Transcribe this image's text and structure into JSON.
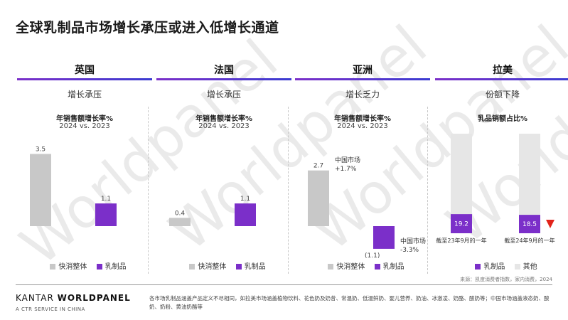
{
  "title": "全球乳制品市场增长承压或进入低增长通道",
  "colors": {
    "overall": "#c8c8c8",
    "dairy": "#7b2fc9",
    "other": "#e6e6e6",
    "down": "#e2231a"
  },
  "panels": [
    {
      "name": "英国",
      "subtitle": "增长承压",
      "chart_title": "年销售额增长率%",
      "chart_subtitle": "2024 vs. 2023"
    },
    {
      "name": "法国",
      "subtitle": "增长承压",
      "chart_title": "年销售额增长率%",
      "chart_subtitle": "2024 vs. 2023"
    },
    {
      "name": "亚洲",
      "subtitle": "增长乏力",
      "chart_title": "年销售额增长率%",
      "chart_subtitle": "2024 vs. 2023"
    },
    {
      "name": "拉美",
      "subtitle": "份额下降",
      "chart_title": "乳品销额占比%",
      "chart_subtitle": ""
    }
  ],
  "asia_annotations": {
    "overall": "中国市场\n+1.7%",
    "dairy": "中国市场\n-3.3%"
  },
  "legend": {
    "overall": "快消整体",
    "dairy": "乳制品",
    "other": "其他"
  },
  "chart_data": [
    {
      "type": "bar",
      "title": "年销售额增长率%",
      "xlabel": "2024 vs. 2023",
      "categories": [
        "快消整体",
        "乳制品"
      ],
      "values": [
        3.5,
        1.1
      ],
      "labels": [
        "3.5",
        "1.1"
      ],
      "ylim": [
        -1.5,
        3.5
      ]
    },
    {
      "type": "bar",
      "title": "年销售额增长率%",
      "xlabel": "2024 vs. 2023",
      "categories": [
        "快消整体",
        "乳制品"
      ],
      "values": [
        0.4,
        1.1
      ],
      "labels": [
        "0.4",
        "1.1"
      ],
      "ylim": [
        -1.5,
        3.5
      ]
    },
    {
      "type": "bar",
      "title": "年销售额增长率%",
      "xlabel": "2024 vs. 2023",
      "categories": [
        "快消整体",
        "乳制品"
      ],
      "values": [
        2.7,
        -1.1
      ],
      "labels": [
        "2.7",
        "(1.1)"
      ],
      "ylim": [
        -1.5,
        3.5
      ]
    },
    {
      "type": "bar",
      "title": "乳品销额占比%",
      "stacked": true,
      "categories": [
        "截至23年9月的一年",
        "截至24年9月的一年"
      ],
      "series": [
        {
          "name": "乳制品",
          "values": [
            19.2,
            18.5
          ]
        },
        {
          "name": "其他",
          "values": [
            80.8,
            81.5
          ]
        }
      ],
      "ylim": [
        0,
        100
      ]
    }
  ],
  "source": "来源：凯度消费者指数，家内消费，2024",
  "brand": {
    "name_light": "KANTAR ",
    "name_bold": "WORLDPANEL",
    "tagline": "A CTR SERVICE IN CHINA"
  },
  "note": "各市场乳制品涵盖产品定义不尽相同，如拉美市场涵盖植物饮料、花色奶及奶昔、常温奶、低温鲜奶、婴儿营养、奶油、冰激凌、奶酪、酸奶等；中国市场涵盖液态奶、酸奶、奶粉、黄油奶酪等",
  "watermark": "Worldpanel"
}
